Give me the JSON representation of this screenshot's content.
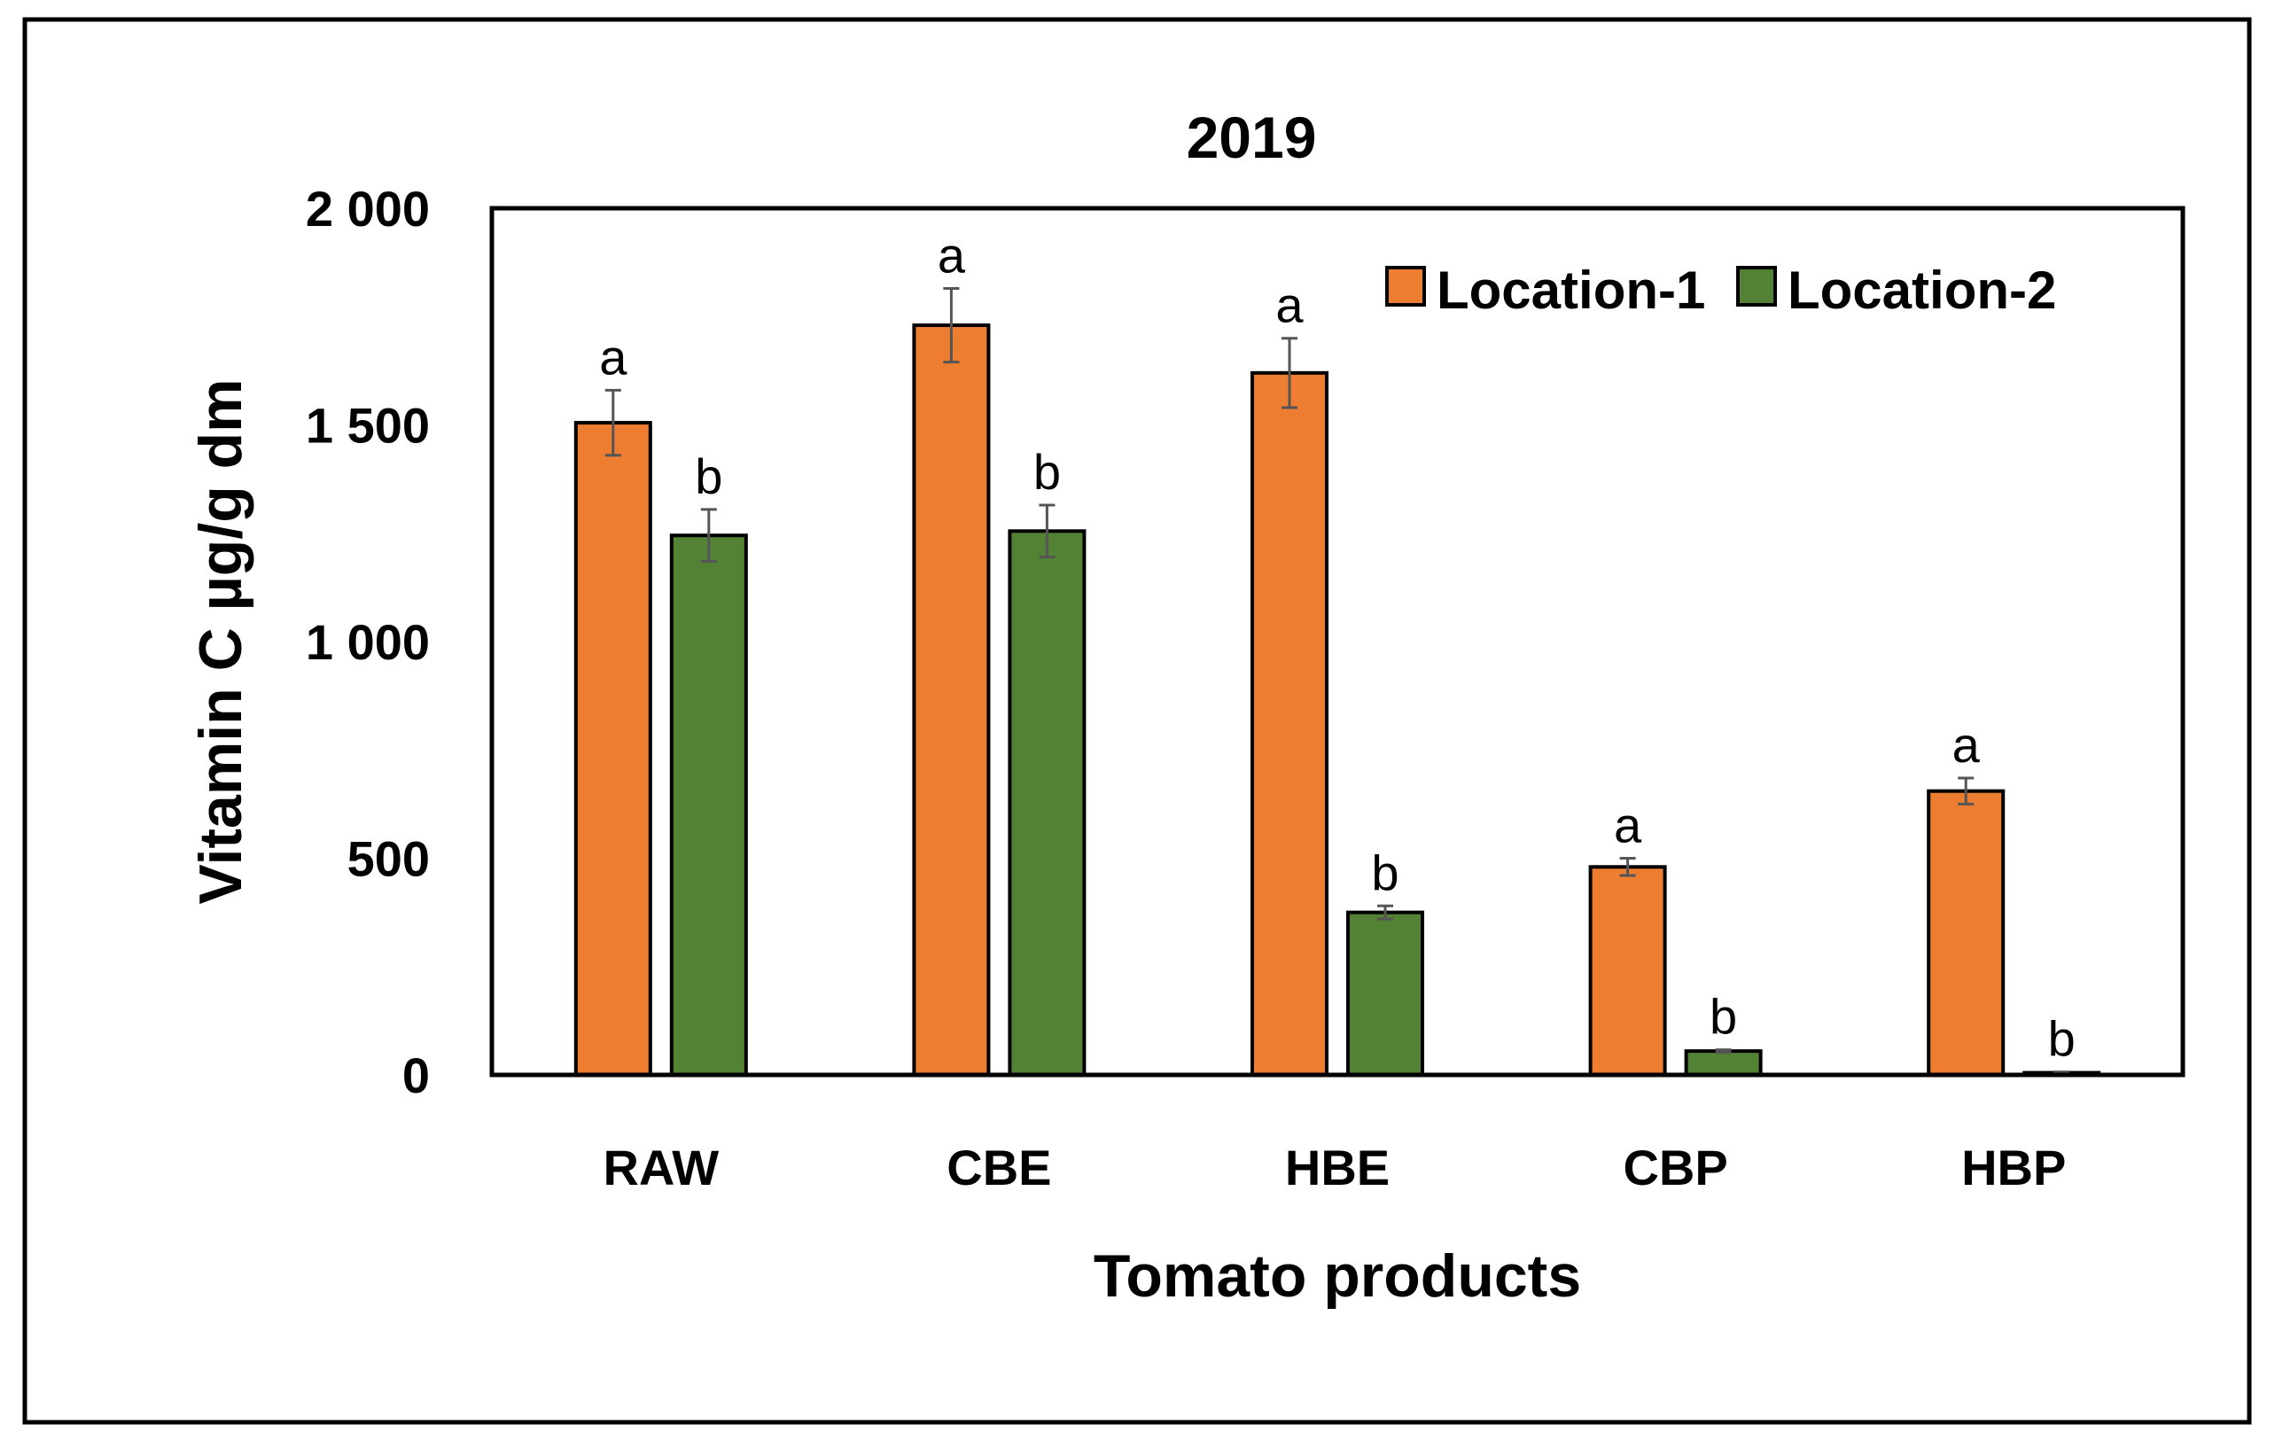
{
  "chart_data": {
    "type": "bar",
    "title": "2019",
    "xlabel": "Tomato products",
    "ylabel": "Vitamin C µg/g dm",
    "categories": [
      "RAW",
      "CBE",
      "HBE",
      "CBP",
      "HBP"
    ],
    "ylim": [
      0,
      2000
    ],
    "yticks": [
      0,
      500,
      1000,
      1500,
      2000
    ],
    "ytick_labels": [
      "0",
      "500",
      "1 000",
      "1 500",
      "2 000"
    ],
    "grid": false,
    "legend_position": "top-right",
    "series": [
      {
        "name": "Location-1",
        "color": "#ED7D31",
        "values": [
          1505,
          1730,
          1620,
          480,
          655
        ],
        "errors": [
          75,
          85,
          80,
          20,
          30
        ],
        "letters": [
          "a",
          "a",
          "a",
          "a",
          "a"
        ]
      },
      {
        "name": "Location-2",
        "color": "#548235",
        "values": [
          1245,
          1255,
          375,
          55,
          5
        ],
        "errors": [
          60,
          60,
          15,
          3,
          2
        ],
        "letters": [
          "b",
          "b",
          "b",
          "b",
          "b"
        ]
      }
    ]
  }
}
